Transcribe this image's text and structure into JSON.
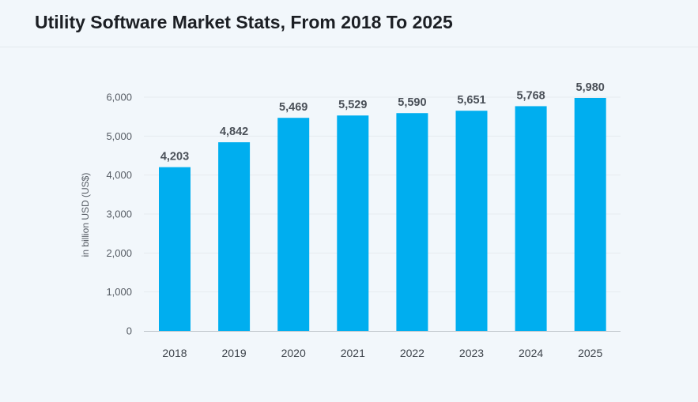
{
  "header": {
    "title": "Utility Software Market Stats, From 2018 To 2025"
  },
  "colors": {
    "bar": "#00aeef",
    "grid": "#e6ebef",
    "axis": "#bfc5cb"
  },
  "chart_data": {
    "type": "bar",
    "title": "Utility Software Market Stats, From 2018 To 2025",
    "xlabel": "",
    "ylabel": "in billion USD (US$)",
    "categories": [
      "2018",
      "2019",
      "2020",
      "2021",
      "2022",
      "2023",
      "2024",
      "2025"
    ],
    "values": [
      4203,
      4842,
      5469,
      5529,
      5590,
      5651,
      5768,
      5980
    ],
    "data_labels": [
      "4,203",
      "4,842",
      "5,469",
      "5,529",
      "5,590",
      "5,651",
      "5,768",
      "5,980"
    ],
    "y_ticks": [
      0,
      1000,
      2000,
      3000,
      4000,
      5000,
      6000
    ],
    "y_tick_labels": [
      "0",
      "1,000",
      "2,000",
      "3,000",
      "4,000",
      "5,000",
      "6,000"
    ],
    "ylim": [
      0,
      6000
    ],
    "grid": true,
    "legend": "none"
  }
}
